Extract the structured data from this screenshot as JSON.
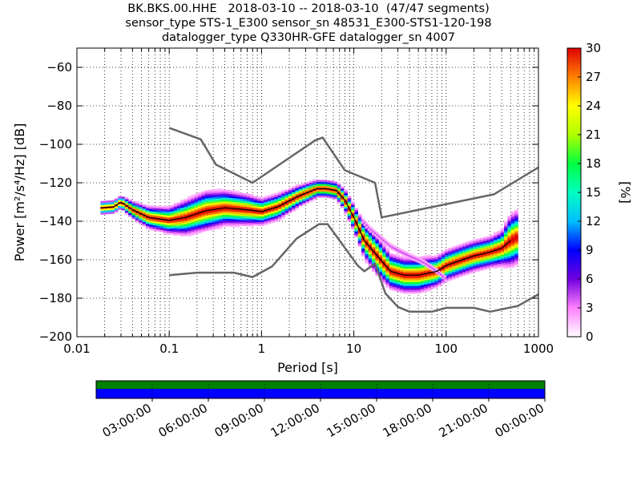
{
  "chart_data": {
    "type": "heatmap",
    "title_lines": [
      "BK.BKS.00.HHE   2018-03-10 -- 2018-03-10  (47/47 segments)",
      "sensor_type STS-1_E300 sensor_sn 48531_E300-STS1-120-198",
      "datalogger_type Q330HR-GFE datalogger_sn 4007"
    ],
    "xlabel": "Period [s]",
    "ylabel": "Power [m²/s⁴/Hz] [dB]",
    "x_scale": "log",
    "xlim": [
      0.01,
      1000
    ],
    "ylim": [
      -200,
      -50
    ],
    "xticks": [
      {
        "value": 0.01,
        "label": "0.01"
      },
      {
        "value": 0.1,
        "label": "0.1"
      },
      {
        "value": 1,
        "label": "1"
      },
      {
        "value": 10,
        "label": "10"
      },
      {
        "value": 100,
        "label": "100"
      },
      {
        "value": 1000,
        "label": "1000"
      }
    ],
    "yticks": [
      {
        "value": -60,
        "label": "−60"
      },
      {
        "value": -80,
        "label": "−80"
      },
      {
        "value": -100,
        "label": "−100"
      },
      {
        "value": -120,
        "label": "−120"
      },
      {
        "value": -140,
        "label": "−140"
      },
      {
        "value": -160,
        "label": "−160"
      },
      {
        "value": -180,
        "label": "−180"
      },
      {
        "value": -200,
        "label": "−200"
      }
    ],
    "grid": "dotted",
    "colorbar": {
      "label": "[%]",
      "range": [
        0,
        30
      ],
      "ticks": [
        {
          "value": 0,
          "label": "0"
        },
        {
          "value": 3,
          "label": "3"
        },
        {
          "value": 6,
          "label": "6"
        },
        {
          "value": 9,
          "label": "9"
        },
        {
          "value": 12,
          "label": "12"
        },
        {
          "value": 15,
          "label": "15"
        },
        {
          "value": 18,
          "label": "18"
        },
        {
          "value": 21,
          "label": "21"
        },
        {
          "value": 24,
          "label": "24"
        },
        {
          "value": 27,
          "label": "27"
        },
        {
          "value": 30,
          "label": "30"
        }
      ]
    },
    "noise_models": [
      {
        "color": "#666666",
        "x": [
          0.1,
          0.22,
          0.32,
          0.8,
          3.8,
          4.6,
          8,
          17,
          20,
          330,
          1000
        ],
        "y": [
          -91.5,
          -97.4,
          -110.5,
          -120,
          -98,
          -96.5,
          -113.5,
          -120,
          -138,
          -126,
          -112
        ]
      },
      {
        "color": "#666666",
        "x": [
          0.1,
          0.2,
          0.5,
          0.8,
          1.3,
          2.4,
          4.2,
          5.2,
          7,
          11,
          13,
          17,
          22,
          30,
          40,
          70,
          100,
          200,
          300,
          600,
          1000
        ],
        "y": [
          -168,
          -166.7,
          -166.7,
          -169,
          -163.5,
          -149,
          -141.5,
          -141.5,
          -150,
          -163,
          -166,
          -162,
          -177.5,
          -184.5,
          -187,
          -187,
          -185,
          -185,
          -187,
          -184,
          -178
        ]
      }
    ],
    "mean_curve": {
      "color": "#000000",
      "x": [
        0.018,
        0.025,
        0.03,
        0.04,
        0.06,
        0.1,
        0.15,
        0.25,
        0.4,
        0.7,
        1,
        1.5,
        2.5,
        4,
        5,
        6.5,
        8,
        10,
        13,
        18,
        25,
        35,
        50,
        80,
        100,
        150,
        200,
        300,
        400,
        500
      ],
      "y": [
        -133,
        -132.5,
        -130,
        -134,
        -138,
        -139.5,
        -138,
        -134.5,
        -133,
        -134,
        -135,
        -132.5,
        -127,
        -123,
        -123,
        -124,
        -129,
        -138,
        -150,
        -158,
        -166,
        -168,
        -168,
        -166,
        -163,
        -160,
        -158,
        -156,
        -154,
        -150
      ]
    },
    "pdf_band": {
      "x": [
        0.018,
        0.025,
        0.03,
        0.04,
        0.06,
        0.1,
        0.15,
        0.25,
        0.4,
        0.7,
        1,
        1.5,
        2.5,
        4,
        5,
        6.5,
        8,
        10,
        13,
        18,
        25,
        35,
        50,
        80,
        100,
        150,
        200,
        300,
        400,
        500,
        600
      ],
      "y": [
        -133,
        -132.5,
        -130,
        -134,
        -138,
        -139.5,
        -138,
        -134.5,
        -133,
        -134,
        -135,
        -132.5,
        -127,
        -123,
        -123,
        -124,
        -129,
        -138,
        -150,
        -158,
        -166,
        -168,
        -168,
        -166,
        -163,
        -160,
        -158,
        -156,
        -154,
        -150,
        -148
      ],
      "spread": [
        1.5,
        1.5,
        1.5,
        2.0,
        2.5,
        3.0,
        4.0,
        4.5,
        4.0,
        3.5,
        3.0,
        3.0,
        2.5,
        2.0,
        2.0,
        2.0,
        2.5,
        3.0,
        4.0,
        4.5,
        4.0,
        4.0,
        4.0,
        3.5,
        3.5,
        3.5,
        3.5,
        3.5,
        4.0,
        6.0,
        6.0
      ]
    },
    "secondary_branch": {
      "x": [
        12,
        15,
        20,
        25,
        30,
        40,
        50,
        60,
        80,
        100
      ],
      "y": [
        -139,
        -144,
        -149,
        -153,
        -155,
        -158,
        -160,
        -162,
        -166,
        -170
      ]
    },
    "coverage_bar": {
      "tick_labels": [
        "03:00:00",
        "06:00:00",
        "09:00:00",
        "12:00:00",
        "15:00:00",
        "18:00:00",
        "21:00:00",
        "00:00:00"
      ],
      "data_color": "#0000ff",
      "segment_color": "#008000"
    }
  }
}
